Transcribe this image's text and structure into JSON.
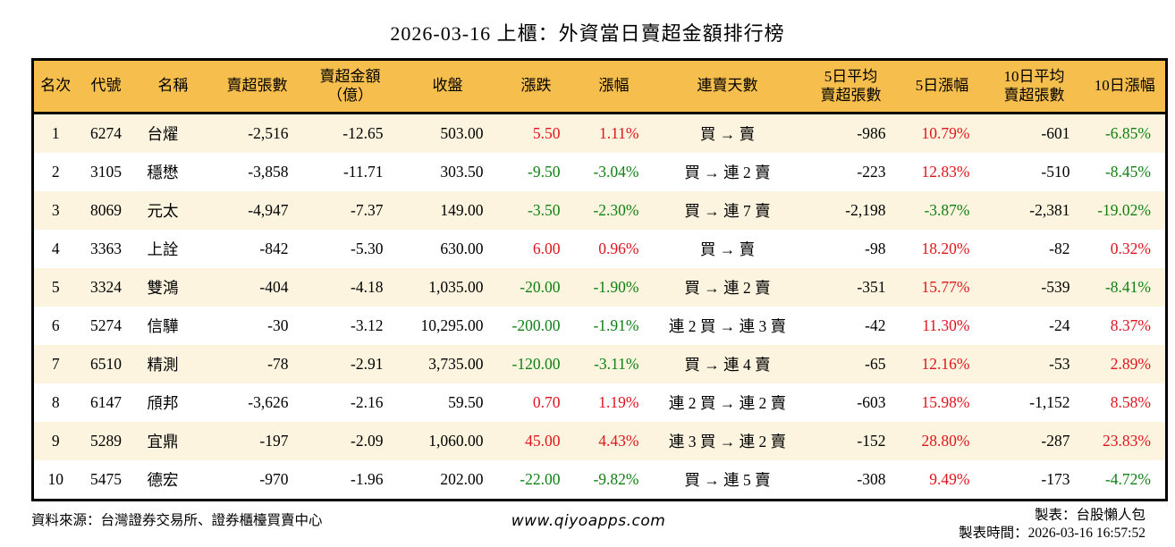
{
  "title": "2026-03-16 上櫃：外資當日賣超金額排行榜",
  "colors": {
    "header_bg": "#F6BE4D",
    "row_stripe_bg": "#FCF4DE",
    "up_red": "#E1141E",
    "down_green": "#0F8012",
    "border": "#000000"
  },
  "table": {
    "headers": [
      "名次",
      "代號",
      "名稱",
      "賣超張數",
      "賣超金額\n（億）",
      "收盤",
      "漲跌",
      "漲幅",
      "連賣天數",
      "5日平均\n賣超張數",
      "5日漲幅",
      "10日平均\n賣超張數",
      "10日漲幅"
    ],
    "colored_column_indexes": [
      6,
      7,
      10,
      12
    ],
    "rows": [
      [
        "1",
        "6274",
        "台燿",
        "-2,516",
        "-12.65",
        "503.00",
        "5.50",
        "1.11%",
        "買 → 賣",
        "-986",
        "10.79%",
        "-601",
        "-6.85%"
      ],
      [
        "2",
        "3105",
        "穩懋",
        "-3,858",
        "-11.71",
        "303.50",
        "-9.50",
        "-3.04%",
        "買 → 連 2 賣",
        "-223",
        "12.83%",
        "-510",
        "-8.45%"
      ],
      [
        "3",
        "8069",
        "元太",
        "-4,947",
        "-7.37",
        "149.00",
        "-3.50",
        "-2.30%",
        "買 → 連 7 賣",
        "-2,198",
        "-3.87%",
        "-2,381",
        "-19.02%"
      ],
      [
        "4",
        "3363",
        "上詮",
        "-842",
        "-5.30",
        "630.00",
        "6.00",
        "0.96%",
        "買 → 賣",
        "-98",
        "18.20%",
        "-82",
        "0.32%"
      ],
      [
        "5",
        "3324",
        "雙鴻",
        "-404",
        "-4.18",
        "1,035.00",
        "-20.00",
        "-1.90%",
        "買 → 連 2 賣",
        "-351",
        "15.77%",
        "-539",
        "-8.41%"
      ],
      [
        "6",
        "5274",
        "信驊",
        "-30",
        "-3.12",
        "10,295.00",
        "-200.00",
        "-1.91%",
        "連 2 買 → 連 3 賣",
        "-42",
        "11.30%",
        "-24",
        "8.37%"
      ],
      [
        "7",
        "6510",
        "精測",
        "-78",
        "-2.91",
        "3,735.00",
        "-120.00",
        "-3.11%",
        "買 → 連 4 賣",
        "-65",
        "12.16%",
        "-53",
        "2.89%"
      ],
      [
        "8",
        "6147",
        "頎邦",
        "-3,626",
        "-2.16",
        "59.50",
        "0.70",
        "1.19%",
        "連 2 買 → 連 2 賣",
        "-603",
        "15.98%",
        "-1,152",
        "8.58%"
      ],
      [
        "9",
        "5289",
        "宜鼎",
        "-197",
        "-2.09",
        "1,060.00",
        "45.00",
        "4.43%",
        "連 3 買 → 連 2 賣",
        "-152",
        "28.80%",
        "-287",
        "23.83%"
      ],
      [
        "10",
        "5475",
        "德宏",
        "-970",
        "-1.96",
        "202.00",
        "-22.00",
        "-9.82%",
        "買 → 連 5 賣",
        "-308",
        "9.49%",
        "-173",
        "-4.72%"
      ]
    ]
  },
  "footer": {
    "source": "資料來源：台灣證券交易所、證券櫃檯買賣中心",
    "website": "www.qiyoapps.com",
    "maker": "製表：台股懶人包",
    "made_time": "製表時間：2026-03-16 16:57:52"
  }
}
